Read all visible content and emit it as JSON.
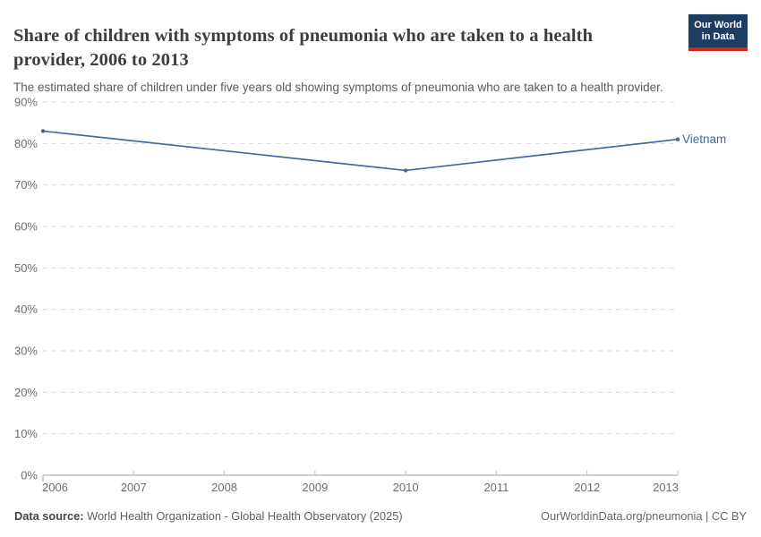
{
  "header": {
    "title": "Share of children with symptoms of pneumonia who are taken to a health provider, 2006 to 2013",
    "subtitle": "The estimated share of children under five years old showing symptoms of pneumonia who are taken to a health provider.",
    "logo": {
      "line1": "Our World",
      "line2": "in Data",
      "bg_color": "#1d3d63",
      "accent_color": "#d2271e"
    }
  },
  "chart_data": {
    "type": "line",
    "title": "Share of children with symptoms of pneumonia who are taken to a health provider, 2006 to 2013",
    "xlabel": "",
    "ylabel": "",
    "xlim": [
      2006,
      2013
    ],
    "ylim": [
      0,
      90
    ],
    "x_ticks": [
      2006,
      2007,
      2008,
      2009,
      2010,
      2011,
      2012,
      2013
    ],
    "y_ticks": [
      0,
      10,
      20,
      30,
      40,
      50,
      60,
      70,
      80,
      90
    ],
    "y_tick_suffix": "%",
    "grid": "horizontal-dashed",
    "legend_position": "end-of-line-label",
    "series": [
      {
        "name": "Vietnam",
        "color": "#4566a3",
        "points": [
          {
            "year": 2006,
            "value": 83
          },
          {
            "year": 2010,
            "value": 73.5
          },
          {
            "year": 2013,
            "value": 81
          }
        ]
      }
    ],
    "colors": {
      "gridline": "#dadada",
      "axis_line": "#a3a3a3",
      "axis_tick": "#c2c2c2",
      "tick_label": "#6e6e6e"
    }
  },
  "footer": {
    "datasource_label": "Data source:",
    "datasource_value": "World Health Organization - Global Health Observatory (2025)",
    "right_text": "OurWorldinData.org/pneumonia | CC BY"
  }
}
